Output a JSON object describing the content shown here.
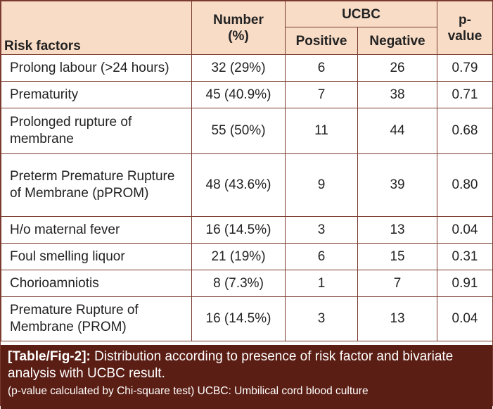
{
  "header": {
    "risk_factors": "Risk factors",
    "number_line1": "Number",
    "number_line2": "(%)",
    "ucbc": "UCBC",
    "positive": "Positive",
    "negative": "Negative",
    "pvalue_line1": "p-",
    "pvalue_line2": "value"
  },
  "rows": [
    {
      "factor": "Prolong labour (>24 hours)",
      "number": "32 (29%)",
      "positive": "6",
      "negative": "26",
      "p": "0.79"
    },
    {
      "factor": "Prematurity",
      "number": "45 (40.9%)",
      "positive": "7",
      "negative": "38",
      "p": "0.71"
    },
    {
      "factor": "Prolonged rupture of membrane",
      "number": "55 (50%)",
      "positive": "11",
      "negative": "44",
      "p": "0.68"
    },
    {
      "factor": "Preterm Premature Rupture of Membrane (pPROM)",
      "number": "48 (43.6%)",
      "positive": "9",
      "negative": "39",
      "p": "0.80"
    },
    {
      "factor": "H/o maternal fever",
      "number": "16 (14.5%)",
      "positive": "3",
      "negative": "13",
      "p": "0.04"
    },
    {
      "factor": "Foul smelling liquor",
      "number": "21 (19%)",
      "positive": "6",
      "negative": "15",
      "p": "0.31"
    },
    {
      "factor": "Chorioamniotis",
      "number": "8 (7.3%)",
      "positive": "1",
      "negative": "7",
      "p": "0.91"
    },
    {
      "factor": "Premature Rupture of Membrane (PROM)",
      "number": "16 (14.5%)",
      "positive": "3",
      "negative": "13",
      "p": "0.04"
    }
  ],
  "caption": {
    "label": "[Table/Fig-2]:",
    "text": "Distribution according to presence of risk factor and bivariate analysis with UCBC result.",
    "note": "(p-value calculated by Chi-square test) UCBC: Umbilical cord blood culture"
  },
  "colors": {
    "header_bg": "#f8dcc6",
    "border": "#7a3b2e",
    "caption_bg": "#5b1e14"
  }
}
